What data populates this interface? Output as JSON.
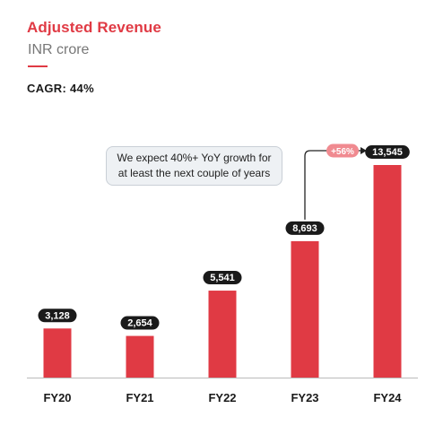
{
  "header": {
    "title": "Adjusted Revenue",
    "subtitle": "INR crore",
    "cagr": "CAGR: 44%"
  },
  "annotation": {
    "note": "We expect 40%+ YoY growth for at least the next couple of years",
    "growth_badge": "+56%"
  },
  "colors": {
    "accent": "#e03a44",
    "badge_pink": "#f08a90",
    "label_dark": "#1a1a1a",
    "axis": "#bbbbbb"
  },
  "chart_data": {
    "type": "bar",
    "title": "Adjusted Revenue",
    "subtitle": "INR crore",
    "categories": [
      "FY20",
      "FY21",
      "FY22",
      "FY23",
      "FY24"
    ],
    "values": [
      3128,
      2654,
      5541,
      8693,
      13545
    ],
    "value_labels": [
      "3,128",
      "2,654",
      "5,541",
      "8,693",
      "13,545"
    ],
    "ylim": [
      0,
      13545
    ],
    "grid": false,
    "legend": "none",
    "annotations": [
      "CAGR: 44%",
      "+56%",
      "We expect 40%+ YoY growth for at least the next couple of years"
    ]
  }
}
